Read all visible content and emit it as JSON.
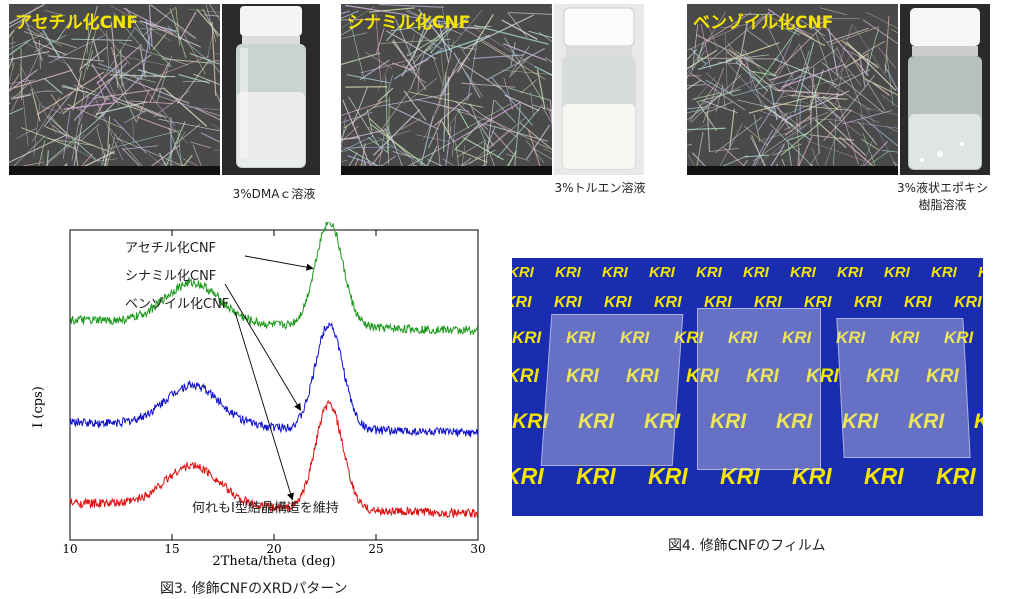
{
  "samples": [
    {
      "name": "アセチル化CNF",
      "caption_lines": [
        "3%DMAｃ溶液"
      ]
    },
    {
      "name": "シナミル化CNF",
      "caption_lines": [
        "3%トルエン溶液"
      ]
    },
    {
      "name": "ベンゾイル化CNF",
      "caption_lines": [
        "3%液状エポキシ",
        "樹脂溶液"
      ]
    }
  ],
  "chart_data": {
    "type": "line",
    "xlabel": "2Theta/theta (deg)",
    "ylabel": "I (cps)",
    "xlim": [
      10,
      30
    ],
    "xticks": [
      10,
      15,
      20,
      25,
      30
    ],
    "grid": false,
    "series": [
      {
        "name": "アセチル化CNF",
        "color": "#1f9a1f",
        "baseline": 0.71,
        "broad_peak": 0.13,
        "main_peak": 0.34
      },
      {
        "name": "シナミル化CNF",
        "color": "#1111cc",
        "baseline": 0.38,
        "broad_peak": 0.13,
        "main_peak": 0.34
      },
      {
        "name": "ベンゾイル化CNF",
        "color": "#dd1111",
        "baseline": 0.12,
        "broad_peak": 0.13,
        "main_peak": 0.34
      }
    ],
    "annotation": "何れもI型結晶構造を維持"
  },
  "figure3_caption": "図3. 修飾CNFのXRDパターン",
  "figure4_caption": "図4. 修飾CNFのフィルム",
  "film_text": "KRI",
  "colors": {
    "sem_label": "#f4e400",
    "film_background": "#1a2db0",
    "film_text": "#f2e600"
  }
}
